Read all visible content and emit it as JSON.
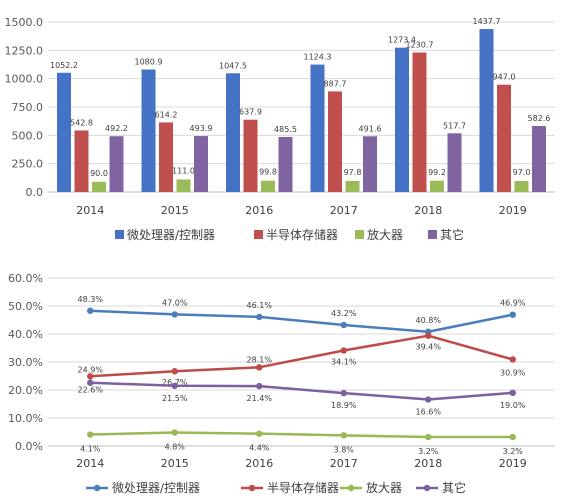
{
  "chart_data": [
    {
      "type": "bar",
      "categories": [
        "2014",
        "2015",
        "2016",
        "2017",
        "2018",
        "2019"
      ],
      "series": [
        {
          "name": "微处理器/控制器",
          "color": "#4472C4",
          "values": [
            1052.2,
            1080.9,
            1047.5,
            1124.3,
            1273.4,
            1437.7
          ],
          "labels": [
            "1052.2",
            "1080.9",
            "1047.5",
            "1124.3",
            "1273.4",
            "1437.7"
          ]
        },
        {
          "name": "半导体存储器",
          "color": "#C0504D",
          "values": [
            542.8,
            614.2,
            637.9,
            887.7,
            1230.7,
            947.0
          ],
          "labels": [
            "542.8",
            "614.2",
            "637.9",
            "887.7",
            "1230.7",
            "947.0"
          ]
        },
        {
          "name": "放大器",
          "color": "#9BBB59",
          "values": [
            90.0,
            111.0,
            99.8,
            97.8,
            99.2,
            97.0
          ],
          "labels": [
            "90.0",
            "111.0",
            "99.8",
            "97.8",
            "99.2",
            "97.0"
          ]
        },
        {
          "name": "其它",
          "color": "#8064A2",
          "values": [
            492.2,
            493.9,
            485.5,
            491.6,
            517.7,
            582.6
          ],
          "labels": [
            "492.2",
            "493.9",
            "485.5",
            "491.6",
            "517.7",
            "582.6"
          ]
        }
      ],
      "ylim": [
        0,
        1500
      ],
      "yticks": [
        "0.0",
        "250.0",
        "500.0",
        "750.0",
        "1000.0",
        "1250.0",
        "1500.0"
      ],
      "grid": true,
      "legend": "bottom"
    },
    {
      "type": "line",
      "categories": [
        "2014",
        "2015",
        "2016",
        "2017",
        "2018",
        "2019"
      ],
      "series": [
        {
          "name": "微处理器/控制器",
          "color": "#4A7EBB",
          "values": [
            48.3,
            47.0,
            46.1,
            43.2,
            40.8,
            46.9
          ],
          "labels": [
            "48.3%",
            "47.0%",
            "46.1%",
            "43.2%",
            "40.8%",
            "46.9%"
          ]
        },
        {
          "name": "半导体存储器",
          "color": "#BE4B48",
          "values": [
            24.9,
            26.7,
            28.1,
            34.1,
            39.4,
            30.9
          ],
          "labels": [
            "24.9%",
            "26.7%",
            "28.1%",
            "34.1%",
            "39.4%",
            "30.9%"
          ]
        },
        {
          "name": "放大器",
          "color": "#98B954",
          "values": [
            4.1,
            4.8,
            4.4,
            3.8,
            3.2,
            3.2
          ],
          "labels": [
            "4.1%",
            "4.8%",
            "4.4%",
            "3.8%",
            "3.2%",
            "3.2%"
          ]
        },
        {
          "name": "其它",
          "color": "#7D60A0",
          "values": [
            22.6,
            21.5,
            21.4,
            18.9,
            16.6,
            19.0
          ],
          "labels": [
            "22.6%",
            "21.5%",
            "21.4%",
            "18.9%",
            "16.6%",
            "19.0%"
          ]
        }
      ],
      "ylim": [
        0,
        60
      ],
      "yticks": [
        "0.0%",
        "10.0%",
        "20.0%",
        "30.0%",
        "40.0%",
        "50.0%",
        "60.0%"
      ],
      "grid": true,
      "legend": "bottom"
    }
  ]
}
